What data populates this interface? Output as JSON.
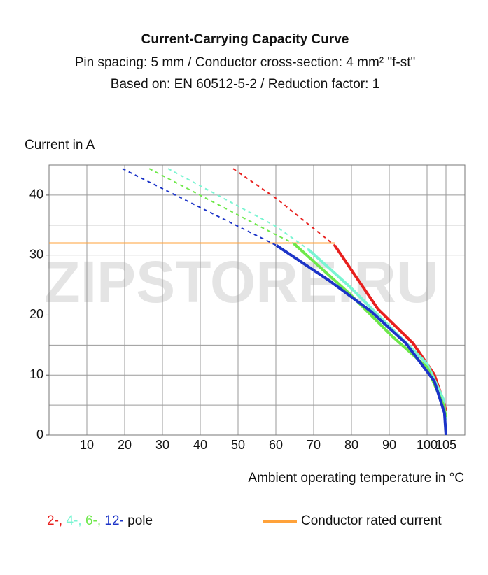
{
  "chart_data": {
    "type": "line",
    "title": "Current-Carrying Capacity Curve",
    "subtitle_lines": [
      "Pin spacing: 5 mm / Conductor cross-section: 4 mm² \"f-st\"",
      "Based on: EN 60512-5-2 / Reduction factor: 1"
    ],
    "y_label": "Current in A",
    "x_label": "Ambient operating temperature in °C",
    "watermark": "ZIPSTORE.RU",
    "xlim": [
      0,
      110
    ],
    "xticks": [
      10,
      20,
      30,
      40,
      50,
      60,
      70,
      80,
      90,
      100,
      105
    ],
    "ylim": [
      0,
      45
    ],
    "yticks": [
      0,
      10,
      20,
      30,
      40
    ],
    "y_gridlines": [
      0,
      5,
      10,
      15,
      20,
      25,
      30,
      35,
      40,
      45
    ],
    "grid": true,
    "legend_separator": ",",
    "legend_suffix": "pole",
    "series": [
      {
        "name": "2-",
        "color": "#e8201e",
        "dashed_until": 75.6,
        "x": [
          48.7,
          60.2,
          75.6,
          87,
          96.3,
          101.9,
          104.4,
          105
        ],
        "values": [
          44.4,
          39.4,
          31.6,
          21,
          15.3,
          10.1,
          5.5,
          4
        ]
      },
      {
        "name": "4-",
        "color": "#7af5d2",
        "dashed_until": 68.5,
        "x": [
          31.5,
          60,
          68.5,
          79.6,
          90.7,
          100,
          104.3,
          105
        ],
        "values": [
          44.4,
          34.8,
          31,
          24.7,
          17.7,
          11.9,
          6,
          2.5
        ]
      },
      {
        "name": "6-",
        "color": "#6ee84a",
        "dashed_until": 64.8,
        "x": [
          26.5,
          60,
          64.8,
          79.6,
          90.7,
          100,
          104.4,
          105
        ],
        "values": [
          44.4,
          33.4,
          31.9,
          23.5,
          16.5,
          11.3,
          4.9,
          3
        ]
      },
      {
        "name": "12-",
        "color": "#1c34c8",
        "dashed_until": 60.2,
        "x": [
          19.4,
          60.2,
          74,
          85.2,
          94.4,
          101.9,
          104.6,
          105
        ],
        "values": [
          44.4,
          31.6,
          25.8,
          20.6,
          15.3,
          9,
          3.7,
          0
        ]
      }
    ],
    "rated_current": {
      "name": "Conductor rated current",
      "color": "#ffa23a",
      "x": [
        0,
        75.6
      ],
      "values": [
        32,
        32
      ]
    }
  }
}
